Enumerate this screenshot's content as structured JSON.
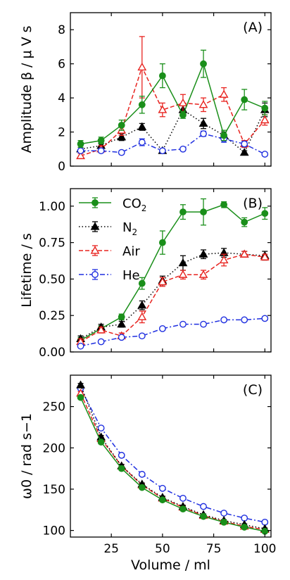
{
  "colors": {
    "CO2": "#1a8f1a",
    "N2": "#000000",
    "Air": "#e8231f",
    "He": "#1f2fe0"
  },
  "chart_data": [
    {
      "type": "line",
      "panel_label": "(A)",
      "ylabel": "Amplitude β / μ V s",
      "xlabel": "",
      "ylim": [
        0,
        9
      ],
      "yticks": [
        0,
        2,
        4,
        6,
        8
      ],
      "xlim": [
        5,
        103
      ],
      "xticks": [
        25,
        50,
        75,
        100
      ],
      "show_xticklabels": false,
      "legend": false,
      "x": [
        10,
        20,
        30,
        40,
        50,
        60,
        70,
        80,
        90,
        100
      ],
      "series": [
        {
          "key": "N2",
          "style": "dotted",
          "marker": "triangle-filled",
          "values": [
            1.0,
            1.2,
            1.7,
            2.3,
            0.9,
            3.3,
            2.5,
            1.8,
            0.8,
            3.3
          ],
          "errors": [
            0.1,
            0.15,
            0.2,
            0.2,
            0.1,
            0.3,
            0.3,
            0.2,
            0.1,
            0.4
          ]
        },
        {
          "key": "Air",
          "style": "dashed",
          "marker": "triangle-open",
          "values": [
            0.6,
            1.0,
            2.1,
            5.8,
            3.3,
            3.7,
            3.6,
            4.2,
            1.3,
            2.7
          ],
          "errors": [
            0.15,
            0.2,
            0.3,
            1.8,
            0.4,
            0.5,
            0.4,
            0.4,
            0.2,
            0.3
          ]
        },
        {
          "key": "He",
          "style": "dashdot",
          "marker": "circle-open",
          "values": [
            0.9,
            0.9,
            0.8,
            1.4,
            0.9,
            1.0,
            1.9,
            1.6,
            1.3,
            0.7
          ],
          "errors": [
            0.1,
            0.1,
            0.1,
            0.2,
            0.1,
            0.1,
            0.15,
            0.2,
            0.15,
            0.1
          ]
        },
        {
          "key": "CO2",
          "style": "solid",
          "marker": "circle-filled",
          "values": [
            1.3,
            1.5,
            2.4,
            3.6,
            5.3,
            3.0,
            6.0,
            1.8,
            3.9,
            3.4
          ],
          "errors": [
            0.2,
            0.2,
            0.3,
            0.5,
            0.7,
            0.2,
            0.8,
            0.3,
            0.6,
            0.4
          ]
        }
      ]
    },
    {
      "type": "line",
      "panel_label": "(B)",
      "ylabel": "Lifetime  / s",
      "xlabel": "",
      "ylim": [
        0,
        1.12
      ],
      "yticks": [
        0.0,
        0.25,
        0.5,
        0.75,
        1.0
      ],
      "yticklabels": [
        "0.00",
        "0.25",
        "0.50",
        "0.75",
        "1.00"
      ],
      "xlim": [
        5,
        103
      ],
      "xticks": [
        25,
        50,
        75,
        100
      ],
      "show_xticklabels": false,
      "legend": true,
      "legend_position": "top-left",
      "x": [
        10,
        20,
        30,
        40,
        50,
        60,
        70,
        80,
        90,
        100
      ],
      "series": [
        {
          "key": "CO2",
          "name": "CO",
          "sub": "2",
          "style": "solid",
          "marker": "circle-filled",
          "values": [
            0.08,
            0.16,
            0.24,
            0.47,
            0.75,
            0.96,
            0.96,
            1.01,
            0.89,
            0.95
          ],
          "errors": [
            0.02,
            0.02,
            0.02,
            0.04,
            0.08,
            0.05,
            0.09,
            0.02,
            0.03,
            0.04
          ]
        },
        {
          "key": "N2",
          "name": "N",
          "sub": "2",
          "style": "dotted",
          "marker": "triangle-filled",
          "values": [
            0.09,
            0.17,
            0.19,
            0.32,
            0.49,
            0.61,
            0.67,
            0.68,
            0.67,
            0.66
          ],
          "errors": [
            0.02,
            0.02,
            0.02,
            0.03,
            0.03,
            0.05,
            0.03,
            0.03,
            0.02,
            0.03
          ]
        },
        {
          "key": "Air",
          "name": "Air",
          "sub": "",
          "style": "dashed",
          "marker": "triangle-open",
          "values": [
            0.07,
            0.15,
            0.11,
            0.24,
            0.48,
            0.53,
            0.53,
            0.63,
            0.67,
            0.65
          ],
          "errors": [
            0.02,
            0.02,
            0.02,
            0.04,
            0.03,
            0.03,
            0.03,
            0.04,
            0.02,
            0.02
          ]
        },
        {
          "key": "He",
          "name": "He",
          "sub": "",
          "style": "dashdot",
          "marker": "circle-open",
          "values": [
            0.04,
            0.07,
            0.1,
            0.11,
            0.16,
            0.19,
            0.19,
            0.22,
            0.22,
            0.23
          ],
          "errors": [
            0.01,
            0.01,
            0.01,
            0.01,
            0.01,
            0.01,
            0.01,
            0.01,
            0.01,
            0.01
          ]
        }
      ]
    },
    {
      "type": "line",
      "panel_label": "(C)",
      "ylabel": "ω0 /  rad s−1",
      "xlabel": "Volume / ml",
      "ylim": [
        92,
        288
      ],
      "yticks": [
        100,
        150,
        200,
        250
      ],
      "xlim": [
        5,
        103
      ],
      "xticks": [
        25,
        50,
        75,
        100
      ],
      "show_xticklabels": true,
      "legend": false,
      "x": [
        10,
        20,
        30,
        40,
        50,
        60,
        70,
        80,
        90,
        100
      ],
      "series": [
        {
          "key": "He",
          "style": "dashdot",
          "marker": "circle-open",
          "values": [
            272,
            224,
            191,
            168,
            151,
            139,
            129,
            121,
            115,
            110
          ],
          "errors": [
            2,
            2,
            2,
            1.5,
            1.5,
            1.5,
            1,
            1,
            1,
            1
          ]
        },
        {
          "key": "Air",
          "style": "dashed",
          "marker": "triangle-open",
          "values": [
            266,
            211,
            178,
            155,
            139,
            128,
            118,
            111,
            105,
            101
          ],
          "errors": [
            2,
            2,
            2,
            1.5,
            1.5,
            1.5,
            1,
            1,
            1,
            1
          ]
        },
        {
          "key": "N2",
          "style": "dotted",
          "marker": "triangle-filled",
          "values": [
            276,
            213,
            178,
            156,
            140,
            129,
            119,
            112,
            107,
            102
          ],
          "errors": [
            2,
            2,
            2,
            1.5,
            1.5,
            1.5,
            1,
            1,
            1,
            1
          ]
        },
        {
          "key": "CO2",
          "style": "solid",
          "marker": "circle-filled",
          "values": [
            261,
            207,
            175,
            152,
            137,
            126,
            117,
            110,
            104,
            99
          ],
          "errors": [
            2,
            2,
            2,
            1.5,
            1.5,
            1.5,
            1,
            1,
            1,
            1
          ]
        }
      ]
    }
  ]
}
